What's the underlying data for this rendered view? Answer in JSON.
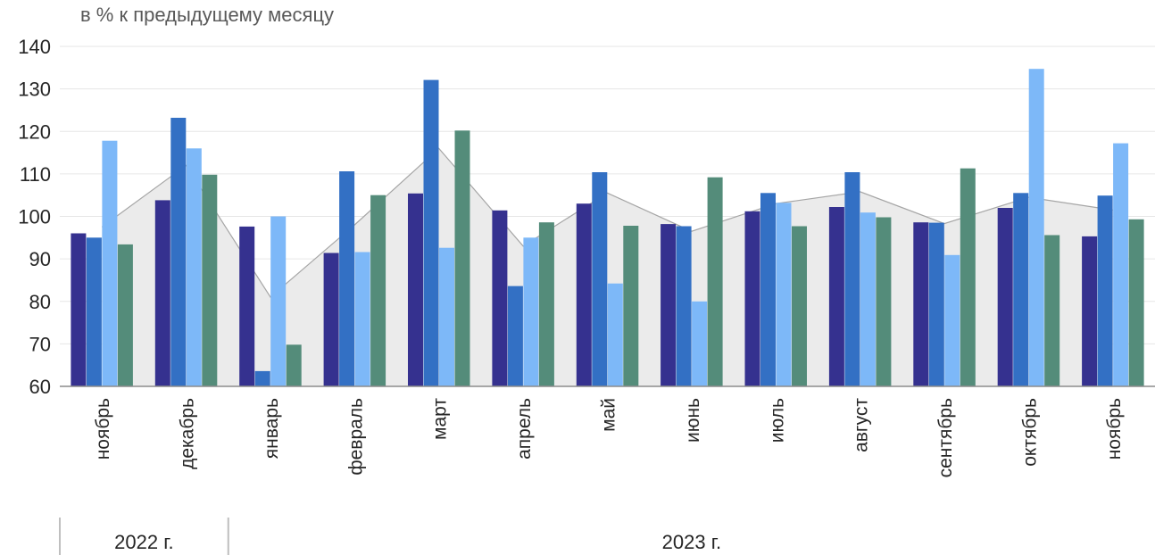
{
  "chart_data": {
    "type": "bar",
    "ylabel": "в % к предыдущему месяцу",
    "ylim": [
      60,
      140
    ],
    "yticks": [
      60,
      70,
      80,
      90,
      100,
      110,
      120,
      130,
      140
    ],
    "grid": true,
    "categories": [
      "ноябрь",
      "декабрь",
      "январь",
      "февраль",
      "март",
      "апрель",
      "май",
      "июнь",
      "июль",
      "август",
      "сентябрь",
      "октябрь",
      "ноябрь"
    ],
    "year_groups": [
      {
        "label": "2022 г.",
        "span": 2
      },
      {
        "label": "2023 г.",
        "span": 11
      }
    ],
    "series": [
      {
        "color": "#35318f",
        "values": [
          96.0,
          103.8,
          97.6,
          91.4,
          105.4,
          101.4,
          103.0,
          98.2,
          101.2,
          102.2,
          98.6,
          102.0,
          95.3
        ]
      },
      {
        "color": "#3370c4",
        "values": [
          95.0,
          123.2,
          63.6,
          110.6,
          132.1,
          83.6,
          110.4,
          97.7,
          105.5,
          110.4,
          98.5,
          105.5,
          104.9
        ]
      },
      {
        "color": "#7db8f8",
        "values": [
          117.8,
          116.0,
          100.0,
          91.6,
          92.6,
          95.0,
          84.2,
          80.0,
          103.2,
          100.9,
          90.9,
          134.7,
          117.2
        ]
      },
      {
        "color": "#548c7a",
        "values": [
          93.4,
          109.8,
          69.8,
          105.0,
          120.2,
          98.6,
          97.8,
          109.2,
          97.7,
          99.8,
          111.3,
          95.6,
          99.3
        ]
      },
      {
        "type": "area",
        "color": "#ebebeb",
        "line_color": "#a6a6a6",
        "values": [
          97.5,
          112.0,
          81.0,
          98.0,
          116.0,
          93.0,
          105.5,
          96.5,
          103.0,
          105.8,
          98.3,
          104.5,
          101.5
        ]
      }
    ]
  }
}
